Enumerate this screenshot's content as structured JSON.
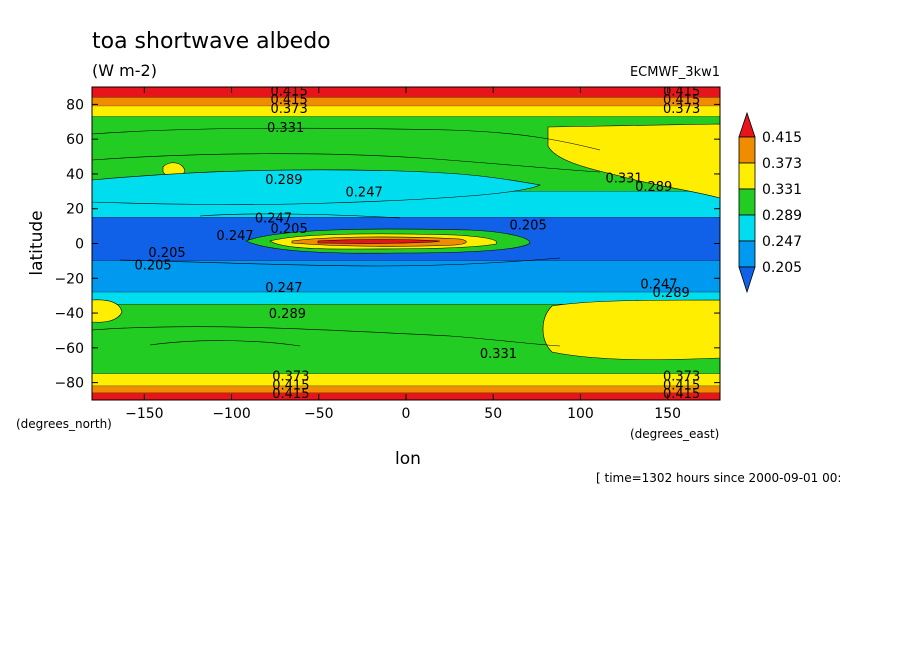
{
  "chart_data": {
    "type": "heatmap",
    "title": "toa shortwave albedo",
    "subtitle": "(W m-2)",
    "dataset": "ECMWF_3kw1",
    "xlabel": "lon",
    "ylabel": "latitude",
    "x_units": "(degrees_east)",
    "y_units": "(degrees_north)",
    "xlim": [
      -180,
      180
    ],
    "ylim": [
      -90,
      90
    ],
    "x_ticks": [
      -150,
      -100,
      -50,
      0,
      50,
      100,
      150
    ],
    "y_ticks": [
      80,
      60,
      40,
      20,
      0,
      -20,
      -40,
      -60,
      -80
    ],
    "time_note": "[ time=1302 hours since 2000-09-01 00:",
    "colorbar": {
      "levels": [
        "0.415",
        "0.373",
        "0.331",
        "0.289",
        "0.247",
        "0.205"
      ],
      "colors": {
        "above_0.415": "#e8141c",
        "0.373_0.415": "#f08c00",
        "0.331_0.373": "#ffee00",
        "0.289_0.331": "#22cc22",
        "0.247_0.289": "#00ddee",
        "0.205_0.247": "#0099f0",
        "below_0.205": "#1060e8"
      }
    },
    "bands": [
      {
        "lat_min": 84,
        "lat_max": 90,
        "value": "0.415+"
      },
      {
        "lat_min": 79,
        "lat_max": 84,
        "value": "0.373-0.415"
      },
      {
        "lat_min": 73,
        "lat_max": 79,
        "value": "0.331-0.373"
      },
      {
        "lat_min": 30,
        "lat_max": 73,
        "value": "0.289-0.331"
      },
      {
        "lat_min": 15,
        "lat_max": 30,
        "value": "0.247-0.289"
      },
      {
        "lat_min": -10,
        "lat_max": 15,
        "value": "<0.247"
      },
      {
        "lat_min": -28,
        "lat_max": -10,
        "value": "0.205-0.247"
      },
      {
        "lat_min": -35,
        "lat_max": -28,
        "value": "0.247-0.289"
      },
      {
        "lat_min": -75,
        "lat_max": -35,
        "value": "0.289-0.331"
      },
      {
        "lat_min": -82,
        "lat_max": -75,
        "value": "0.331-0.373"
      },
      {
        "lat_min": -86,
        "lat_max": -82,
        "value": "0.373-0.415"
      },
      {
        "lat_min": -90,
        "lat_max": -86,
        "value": "0.415+"
      }
    ],
    "contour_labels": [
      {
        "text": "0.415",
        "lon": -67,
        "lat": 88
      },
      {
        "text": "0.415",
        "lon": -67,
        "lat": 83
      },
      {
        "text": "0.373",
        "lon": -67,
        "lat": 78
      },
      {
        "text": "0.331",
        "lon": -69,
        "lat": 67
      },
      {
        "text": "0.415",
        "lon": 158,
        "lat": 88
      },
      {
        "text": "0.415",
        "lon": 158,
        "lat": 83
      },
      {
        "text": "0.373",
        "lon": 158,
        "lat": 78
      },
      {
        "text": "0.331",
        "lon": 125,
        "lat": 38
      },
      {
        "text": "0.289",
        "lon": 142,
        "lat": 33
      },
      {
        "text": "0.289",
        "lon": -70,
        "lat": 37
      },
      {
        "text": "0.247",
        "lon": -24,
        "lat": 30
      },
      {
        "text": "0.247",
        "lon": -76,
        "lat": 15
      },
      {
        "text": "0.205",
        "lon": -67,
        "lat": 9
      },
      {
        "text": "0.247",
        "lon": -98,
        "lat": 5
      },
      {
        "text": "0.205",
        "lon": 70,
        "lat": 11
      },
      {
        "text": "0.205",
        "lon": -137,
        "lat": -5
      },
      {
        "text": "0.205",
        "lon": -145,
        "lat": -12
      },
      {
        "text": "0.247",
        "lon": -70,
        "lat": -25
      },
      {
        "text": "0.289",
        "lon": -68,
        "lat": -40
      },
      {
        "text": "0.247",
        "lon": 145,
        "lat": -23
      },
      {
        "text": "0.289",
        "lon": 152,
        "lat": -28
      },
      {
        "text": "0.331",
        "lon": 53,
        "lat": -63
      },
      {
        "text": "0.373",
        "lon": -66,
        "lat": -76
      },
      {
        "text": "0.415",
        "lon": -66,
        "lat": -81
      },
      {
        "text": "0.415",
        "lon": -66,
        "lat": -86
      },
      {
        "text": "0.373",
        "lon": 158,
        "lat": -76
      },
      {
        "text": "0.415",
        "lon": 158,
        "lat": -81
      },
      {
        "text": "0.415",
        "lon": 158,
        "lat": -86
      }
    ]
  }
}
